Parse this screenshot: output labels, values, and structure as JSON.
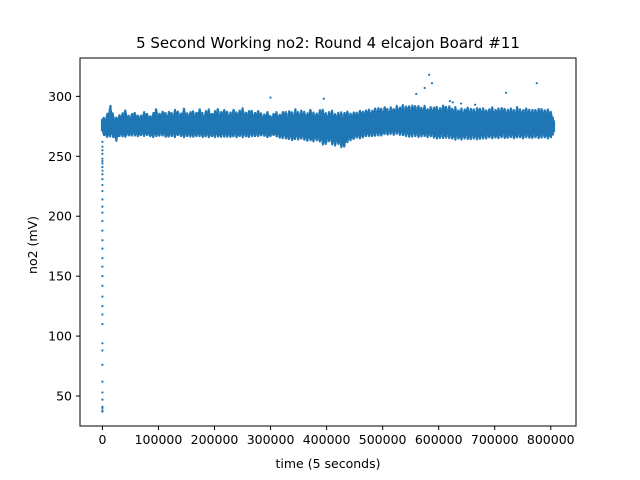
{
  "chart_data": {
    "type": "scatter",
    "title": "5 Second Working no2: Round 4 elcajon Board #11",
    "xlabel": "time (5 seconds)",
    "ylabel": "no2 (mV)",
    "xlim": [
      -40000,
      845000
    ],
    "ylim": [
      25,
      332
    ],
    "xticks": [
      0,
      100000,
      200000,
      300000,
      400000,
      500000,
      600000,
      700000,
      800000
    ],
    "xtick_labels": [
      "0",
      "100000",
      "200000",
      "300000",
      "400000",
      "500000",
      "600000",
      "700000",
      "800000"
    ],
    "yticks": [
      50,
      100,
      150,
      200,
      250,
      300
    ],
    "ytick_labels": [
      "50",
      "100",
      "150",
      "200",
      "250",
      "300"
    ],
    "grid": false,
    "legend": "none",
    "color": "#1f77b4",
    "series": [
      {
        "band": [
          [
            0,
            268,
            284
          ],
          [
            5000,
            266,
            282
          ],
          [
            10000,
            265,
            288
          ],
          [
            15000,
            266,
            294
          ],
          [
            20000,
            265,
            284
          ],
          [
            25000,
            262,
            283
          ],
          [
            30000,
            266,
            285
          ],
          [
            35000,
            266,
            286
          ],
          [
            40000,
            265,
            290
          ],
          [
            45000,
            267,
            285
          ],
          [
            50000,
            266,
            284
          ],
          [
            55000,
            267,
            288
          ],
          [
            60000,
            266,
            286
          ],
          [
            65000,
            266,
            284
          ],
          [
            70000,
            267,
            285
          ],
          [
            75000,
            266,
            288
          ],
          [
            80000,
            267,
            286
          ],
          [
            85000,
            266,
            284
          ],
          [
            90000,
            265,
            286
          ],
          [
            95000,
            266,
            291
          ],
          [
            100000,
            266,
            286
          ],
          [
            105000,
            267,
            287
          ],
          [
            110000,
            266,
            289
          ],
          [
            115000,
            265,
            285
          ],
          [
            120000,
            266,
            289
          ],
          [
            125000,
            266,
            286
          ],
          [
            130000,
            265,
            290
          ],
          [
            135000,
            267,
            288
          ],
          [
            140000,
            266,
            286
          ],
          [
            145000,
            265,
            291
          ],
          [
            150000,
            266,
            287
          ],
          [
            155000,
            266,
            286
          ],
          [
            160000,
            265,
            290
          ],
          [
            165000,
            266,
            286
          ],
          [
            170000,
            266,
            288
          ],
          [
            175000,
            266,
            291
          ],
          [
            180000,
            265,
            285
          ],
          [
            185000,
            266,
            289
          ],
          [
            190000,
            265,
            290
          ],
          [
            195000,
            266,
            286
          ],
          [
            200000,
            265,
            288
          ],
          [
            205000,
            266,
            291
          ],
          [
            210000,
            265,
            287
          ],
          [
            215000,
            266,
            289
          ],
          [
            220000,
            265,
            290
          ],
          [
            225000,
            266,
            286
          ],
          [
            230000,
            265,
            288
          ],
          [
            235000,
            266,
            290
          ],
          [
            240000,
            265,
            287
          ],
          [
            245000,
            266,
            289
          ],
          [
            250000,
            265,
            291
          ],
          [
            255000,
            266,
            287
          ],
          [
            260000,
            265,
            288
          ],
          [
            265000,
            266,
            290
          ],
          [
            270000,
            266,
            286
          ],
          [
            275000,
            266,
            288
          ],
          [
            280000,
            266,
            289
          ],
          [
            285000,
            267,
            285
          ],
          [
            290000,
            266,
            286
          ],
          [
            295000,
            265,
            288
          ],
          [
            300000,
            266,
            284
          ],
          [
            305000,
            267,
            286
          ],
          [
            310000,
            266,
            288
          ],
          [
            315000,
            265,
            285
          ],
          [
            320000,
            264,
            287
          ],
          [
            325000,
            265,
            289
          ],
          [
            330000,
            263,
            286
          ],
          [
            335000,
            264,
            290
          ],
          [
            340000,
            262,
            286
          ],
          [
            345000,
            264,
            291
          ],
          [
            350000,
            263,
            287
          ],
          [
            355000,
            264,
            289
          ],
          [
            360000,
            263,
            288
          ],
          [
            365000,
            262,
            286
          ],
          [
            370000,
            263,
            290
          ],
          [
            375000,
            261,
            288
          ],
          [
            380000,
            263,
            286
          ],
          [
            385000,
            262,
            287
          ],
          [
            390000,
            261,
            291
          ],
          [
            395000,
            258,
            289
          ],
          [
            400000,
            260,
            286
          ],
          [
            405000,
            262,
            288
          ],
          [
            410000,
            259,
            289
          ],
          [
            415000,
            258,
            286
          ],
          [
            420000,
            260,
            287
          ],
          [
            425000,
            257,
            288
          ],
          [
            430000,
            256,
            286
          ],
          [
            435000,
            260,
            289
          ],
          [
            440000,
            262,
            287
          ],
          [
            445000,
            263,
            286
          ],
          [
            450000,
            264,
            288
          ],
          [
            455000,
            265,
            287
          ],
          [
            460000,
            264,
            289
          ],
          [
            465000,
            265,
            288
          ],
          [
            470000,
            266,
            289
          ],
          [
            475000,
            266,
            290
          ],
          [
            480000,
            266,
            288
          ],
          [
            485000,
            266,
            291
          ],
          [
            490000,
            267,
            290
          ],
          [
            495000,
            266,
            292
          ],
          [
            500000,
            267,
            289
          ],
          [
            505000,
            268,
            293
          ],
          [
            510000,
            267,
            289
          ],
          [
            515000,
            268,
            292
          ],
          [
            520000,
            267,
            290
          ],
          [
            525000,
            268,
            293
          ],
          [
            530000,
            267,
            291
          ],
          [
            535000,
            267,
            294
          ],
          [
            540000,
            266,
            292
          ],
          [
            545000,
            266,
            293
          ],
          [
            550000,
            265,
            292
          ],
          [
            555000,
            266,
            294
          ],
          [
            560000,
            266,
            292
          ],
          [
            565000,
            265,
            293
          ],
          [
            570000,
            266,
            291
          ],
          [
            575000,
            266,
            293
          ],
          [
            580000,
            265,
            290
          ],
          [
            585000,
            266,
            292
          ],
          [
            590000,
            265,
            291
          ],
          [
            595000,
            264,
            293
          ],
          [
            600000,
            264,
            290
          ],
          [
            605000,
            265,
            292
          ],
          [
            610000,
            264,
            294
          ],
          [
            615000,
            265,
            291
          ],
          [
            620000,
            264,
            293
          ],
          [
            625000,
            264,
            290
          ],
          [
            630000,
            263,
            292
          ],
          [
            635000,
            264,
            289
          ],
          [
            640000,
            263,
            291
          ],
          [
            645000,
            264,
            289
          ],
          [
            650000,
            264,
            292
          ],
          [
            655000,
            263,
            290
          ],
          [
            660000,
            264,
            291
          ],
          [
            665000,
            264,
            289
          ],
          [
            670000,
            263,
            292
          ],
          [
            675000,
            264,
            290
          ],
          [
            680000,
            264,
            291
          ],
          [
            685000,
            264,
            289
          ],
          [
            690000,
            265,
            290
          ],
          [
            695000,
            264,
            292
          ],
          [
            700000,
            265,
            289
          ],
          [
            705000,
            264,
            291
          ],
          [
            710000,
            265,
            290
          ],
          [
            715000,
            265,
            292
          ],
          [
            720000,
            264,
            289
          ],
          [
            725000,
            265,
            290
          ],
          [
            730000,
            265,
            291
          ],
          [
            735000,
            264,
            289
          ],
          [
            740000,
            265,
            292
          ],
          [
            745000,
            265,
            290
          ],
          [
            750000,
            264,
            289
          ],
          [
            755000,
            265,
            291
          ],
          [
            760000,
            265,
            290
          ],
          [
            765000,
            264,
            289
          ],
          [
            770000,
            265,
            290
          ],
          [
            775000,
            265,
            289
          ],
          [
            780000,
            264,
            291
          ],
          [
            785000,
            265,
            290
          ],
          [
            790000,
            265,
            289
          ],
          [
            795000,
            264,
            290
          ],
          [
            800000,
            265,
            288
          ],
          [
            805000,
            266,
            284
          ]
        ],
        "startup_points": [
          [
            0,
            37
          ],
          [
            0,
            38
          ],
          [
            0,
            40
          ],
          [
            0,
            41
          ],
          [
            0,
            47
          ],
          [
            0,
            53
          ],
          [
            0,
            62
          ],
          [
            0,
            76
          ],
          [
            0,
            88
          ],
          [
            0,
            94
          ],
          [
            0,
            110
          ],
          [
            0,
            118
          ],
          [
            0,
            125
          ],
          [
            0,
            133
          ],
          [
            0,
            142
          ],
          [
            0,
            150
          ],
          [
            0,
            158
          ],
          [
            0,
            165
          ],
          [
            0,
            173
          ],
          [
            0,
            180
          ],
          [
            0,
            188
          ],
          [
            0,
            196
          ],
          [
            0,
            203
          ],
          [
            0,
            208
          ],
          [
            0,
            214
          ],
          [
            0,
            221
          ],
          [
            0,
            226
          ],
          [
            0,
            231
          ],
          [
            0,
            235
          ],
          [
            0,
            238
          ],
          [
            0,
            241
          ],
          [
            0,
            244
          ],
          [
            0,
            246
          ],
          [
            0,
            248
          ],
          [
            0,
            252
          ],
          [
            0,
            255
          ],
          [
            0,
            258
          ],
          [
            0,
            262
          ]
        ],
        "outliers": [
          [
            300000,
            299
          ],
          [
            395000,
            298
          ],
          [
            560000,
            302
          ],
          [
            575000,
            307
          ],
          [
            583000,
            318
          ],
          [
            588000,
            311
          ],
          [
            620000,
            296
          ],
          [
            625000,
            295
          ],
          [
            640000,
            294
          ],
          [
            720000,
            303
          ],
          [
            775000,
            311
          ],
          [
            665000,
            293
          ]
        ]
      }
    ]
  }
}
